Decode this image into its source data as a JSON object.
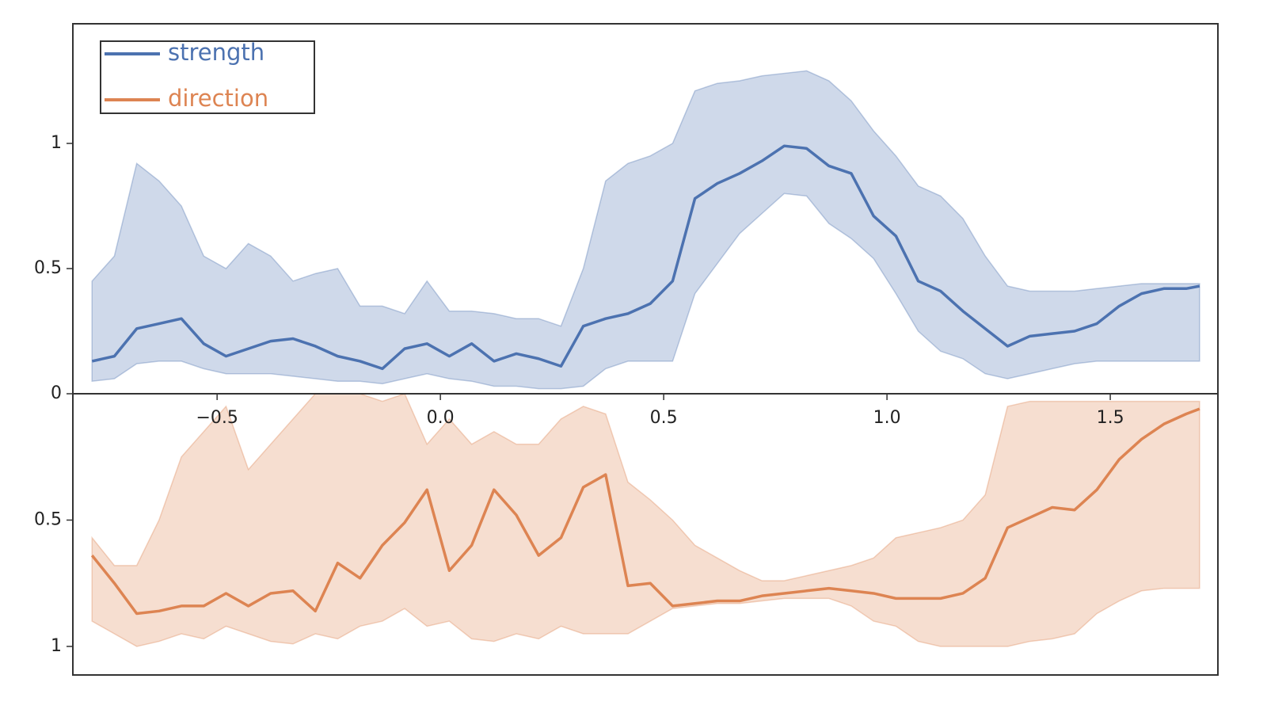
{
  "chart_data": {
    "type": "line",
    "x": [
      -0.78,
      -0.73,
      -0.68,
      -0.63,
      -0.58,
      -0.53,
      -0.48,
      -0.43,
      -0.38,
      -0.33,
      -0.28,
      -0.23,
      -0.18,
      -0.13,
      -0.08,
      -0.03,
      0.02,
      0.07,
      0.12,
      0.17,
      0.22,
      0.27,
      0.32,
      0.37,
      0.42,
      0.47,
      0.52,
      0.57,
      0.62,
      0.67,
      0.72,
      0.77,
      0.82,
      0.87,
      0.92,
      0.97,
      1.02,
      1.07,
      1.12,
      1.17,
      1.22,
      1.27,
      1.32,
      1.37,
      1.42,
      1.47,
      1.52,
      1.57,
      1.62,
      1.67,
      1.7
    ],
    "xlim": [
      -0.823,
      1.741
    ],
    "xticks": [
      {
        "value": -0.5,
        "label": "−0.5"
      },
      {
        "value": 0,
        "label": "0.0"
      },
      0.5,
      {
        "value": 1,
        "label": "1.0"
      },
      1.5
    ],
    "legend": "upper left",
    "panels": [
      {
        "ylim": [
          0,
          1.478
        ],
        "yticks": [
          0,
          0.5,
          1
        ],
        "series": [
          {
            "name": "strength",
            "color": "#4c72b0",
            "values": [
              0.13,
              0.15,
              0.26,
              0.28,
              0.3,
              0.2,
              0.15,
              0.18,
              0.21,
              0.22,
              0.19,
              0.15,
              0.13,
              0.1,
              0.18,
              0.2,
              0.15,
              0.2,
              0.13,
              0.16,
              0.14,
              0.11,
              0.27,
              0.3,
              0.32,
              0.36,
              0.45,
              0.78,
              0.84,
              0.88,
              0.93,
              0.99,
              0.98,
              0.91,
              0.88,
              0.71,
              0.63,
              0.45,
              0.41,
              0.33,
              0.26,
              0.19,
              0.23,
              0.24,
              0.25,
              0.28,
              0.35,
              0.4,
              0.42,
              0.42,
              0.43
            ],
            "lower": [
              0.05,
              0.06,
              0.12,
              0.13,
              0.13,
              0.1,
              0.08,
              0.08,
              0.08,
              0.07,
              0.06,
              0.05,
              0.05,
              0.04,
              0.06,
              0.08,
              0.06,
              0.05,
              0.03,
              0.03,
              0.02,
              0.02,
              0.03,
              0.1,
              0.13,
              0.13,
              0.13,
              0.4,
              0.52,
              0.64,
              0.72,
              0.8,
              0.79,
              0.68,
              0.62,
              0.54,
              0.4,
              0.25,
              0.17,
              0.14,
              0.08,
              0.06,
              0.08,
              0.1,
              0.12,
              0.13,
              0.13,
              0.13,
              0.13,
              0.13,
              0.13
            ],
            "upper": [
              0.45,
              0.55,
              0.92,
              0.85,
              0.75,
              0.55,
              0.5,
              0.6,
              0.55,
              0.45,
              0.48,
              0.5,
              0.35,
              0.35,
              0.32,
              0.45,
              0.33,
              0.33,
              0.32,
              0.3,
              0.3,
              0.27,
              0.5,
              0.85,
              0.92,
              0.95,
              1.0,
              1.21,
              1.24,
              1.25,
              1.27,
              1.28,
              1.29,
              1.25,
              1.17,
              1.05,
              0.95,
              0.83,
              0.79,
              0.7,
              0.55,
              0.43,
              0.41,
              0.41,
              0.41,
              0.42,
              0.43,
              0.44,
              0.44,
              0.44,
              0.44
            ]
          }
        ]
      },
      {
        "ylim": [
          0,
          1.113
        ],
        "yticks": [
          0.5,
          1
        ],
        "invert_y": true,
        "series": [
          {
            "name": "direction",
            "color": "#dd8452",
            "values": [
              0.64,
              0.75,
              0.87,
              0.86,
              0.84,
              0.84,
              0.79,
              0.84,
              0.79,
              0.78,
              0.86,
              0.67,
              0.73,
              0.6,
              0.51,
              0.38,
              0.7,
              0.6,
              0.38,
              0.48,
              0.64,
              0.57,
              0.37,
              0.32,
              0.76,
              0.75,
              0.84,
              0.83,
              0.82,
              0.82,
              0.8,
              0.79,
              0.78,
              0.77,
              0.78,
              0.79,
              0.81,
              0.81,
              0.81,
              0.79,
              0.73,
              0.53,
              0.49,
              0.45,
              0.46,
              0.38,
              0.26,
              0.18,
              0.12,
              0.08,
              0.06
            ],
            "lower": [
              0.57,
              0.68,
              0.68,
              0.5,
              0.25,
              0.15,
              0.05,
              0.3,
              0.2,
              0.1,
              0.0,
              0.0,
              0.0,
              0.03,
              0.0,
              0.2,
              0.1,
              0.2,
              0.15,
              0.2,
              0.2,
              0.1,
              0.05,
              0.08,
              0.35,
              0.42,
              0.5,
              0.6,
              0.65,
              0.7,
              0.74,
              0.74,
              0.72,
              0.7,
              0.68,
              0.65,
              0.57,
              0.55,
              0.53,
              0.5,
              0.4,
              0.05,
              0.03,
              0.03,
              0.03,
              0.03,
              0.03,
              0.03,
              0.03,
              0.03,
              0.03
            ],
            "upper": [
              0.9,
              0.95,
              1.0,
              0.98,
              0.95,
              0.97,
              0.92,
              0.95,
              0.98,
              0.99,
              0.95,
              0.97,
              0.92,
              0.9,
              0.85,
              0.92,
              0.9,
              0.97,
              0.98,
              0.95,
              0.97,
              0.92,
              0.95,
              0.95,
              0.95,
              0.9,
              0.85,
              0.84,
              0.83,
              0.83,
              0.82,
              0.81,
              0.81,
              0.81,
              0.84,
              0.9,
              0.92,
              0.98,
              1.0,
              1.0,
              1.0,
              1.0,
              0.98,
              0.97,
              0.95,
              0.87,
              0.82,
              0.78,
              0.77,
              0.77,
              0.77
            ]
          }
        ]
      }
    ]
  }
}
